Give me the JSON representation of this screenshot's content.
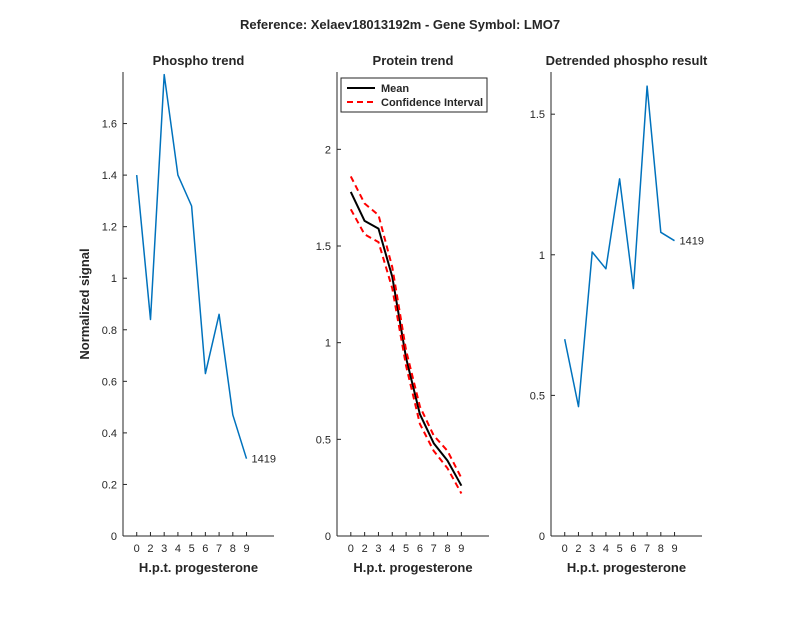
{
  "figure_title": "Reference:  Xelaev18013192m - Gene Symbol:  LMO7",
  "chart_data": [
    {
      "type": "line",
      "title": "Phospho trend",
      "xlabel": "H.p.t. progesterone",
      "ylabel": "Normalized signal",
      "ylim": [
        0,
        1.8
      ],
      "yticks": [
        0,
        0.2,
        0.4,
        0.6,
        0.8,
        1,
        1.2,
        1.4,
        1.6
      ],
      "ytick_labels": [
        "0",
        "0.2",
        "0.4",
        "0.6",
        "0.8",
        "1",
        "1.2",
        "1.4",
        "1.6"
      ],
      "xlim": [
        -1,
        10
      ],
      "xticks": [
        "0",
        "2",
        "3",
        "4",
        "5",
        "6",
        "7",
        "8",
        "9"
      ],
      "x": [
        0,
        1,
        2,
        3,
        4,
        5,
        6,
        7,
        8
      ],
      "series": [
        {
          "name": "1419",
          "color": "#0072bd",
          "values": [
            1.4,
            0.84,
            1.79,
            1.4,
            1.28,
            0.63,
            0.86,
            0.47,
            0.3
          ]
        }
      ],
      "end_label": "1419"
    },
    {
      "type": "line",
      "title": "Protein trend",
      "xlabel": "H.p.t. progesterone",
      "ylim": [
        0,
        2.4
      ],
      "yticks": [
        0,
        0.5,
        1,
        1.5,
        2
      ],
      "ytick_labels": [
        "0",
        "0.5",
        "1",
        "1.5",
        "2"
      ],
      "xlim": [
        -1,
        10
      ],
      "xticks": [
        "0",
        "2",
        "3",
        "4",
        "5",
        "6",
        "7",
        "8",
        "9"
      ],
      "x": [
        0,
        1,
        2,
        3,
        4,
        5,
        6,
        7,
        8
      ],
      "series": [
        {
          "name": "Mean",
          "color": "#000000",
          "values": [
            1.78,
            1.63,
            1.59,
            1.34,
            0.92,
            0.63,
            0.48,
            0.39,
            0.26
          ]
        },
        {
          "name": "Confidence Interval",
          "color": "#ff0000",
          "dashed": true,
          "values": [
            1.86,
            1.72,
            1.66,
            1.39,
            0.96,
            0.67,
            0.52,
            0.44,
            0.3
          ]
        },
        {
          "name": "Confidence Interval",
          "color": "#ff0000",
          "dashed": true,
          "values": [
            1.69,
            1.56,
            1.52,
            1.28,
            0.88,
            0.58,
            0.44,
            0.35,
            0.22
          ]
        }
      ],
      "legend": {
        "position": "top-left",
        "entries": [
          "Mean",
          "Confidence Interval"
        ]
      }
    },
    {
      "type": "line",
      "title": "Detrended phospho result",
      "xlabel": "H.p.t. progesterone",
      "ylim": [
        0,
        1.65
      ],
      "yticks": [
        0,
        0.5,
        1,
        1.5
      ],
      "ytick_labels": [
        "0",
        "0.5",
        "1",
        "1.5"
      ],
      "xlim": [
        -1,
        10
      ],
      "xticks": [
        "0",
        "2",
        "3",
        "4",
        "5",
        "6",
        "7",
        "8",
        "9"
      ],
      "x": [
        0,
        1,
        2,
        3,
        4,
        5,
        6,
        7,
        8
      ],
      "series": [
        {
          "name": "1419",
          "color": "#0072bd",
          "values": [
            0.7,
            0.46,
            1.01,
            0.95,
            1.27,
            0.88,
            1.6,
            1.08,
            1.05
          ]
        }
      ],
      "end_label": "1419"
    }
  ]
}
